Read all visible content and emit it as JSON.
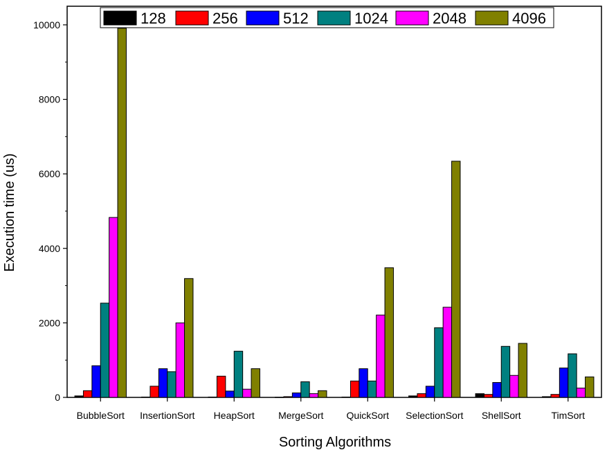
{
  "chart_data": {
    "type": "bar",
    "title": "",
    "xlabel": "Sorting Algorithms",
    "ylabel": "Execution time (us)",
    "ylim": [
      0,
      10500
    ],
    "yticks": [
      0,
      2000,
      4000,
      6000,
      8000,
      10000
    ],
    "ytick_labels": [
      "0",
      "2000",
      "4000",
      "6000",
      "8000",
      "10000"
    ],
    "categories": [
      "BubbleSort",
      "InsertionSort",
      "HeapSort",
      "MergeSort",
      "QuickSort",
      "SelectionSort",
      "ShellSort",
      "TimSort"
    ],
    "legend_position": "top-center",
    "series": [
      {
        "name": "128",
        "color": "#000000",
        "values": [
          40,
          10,
          10,
          5,
          10,
          40,
          100,
          20
        ]
      },
      {
        "name": "256",
        "color": "#ff0000",
        "values": [
          180,
          300,
          570,
          20,
          440,
          100,
          80,
          80
        ]
      },
      {
        "name": "512",
        "color": "#0000ff",
        "values": [
          850,
          770,
          170,
          120,
          770,
          300,
          400,
          790
        ]
      },
      {
        "name": "1024",
        "color": "#008080",
        "values": [
          2530,
          690,
          1240,
          420,
          440,
          1870,
          1370,
          1170
        ]
      },
      {
        "name": "2048",
        "color": "#ff00ff",
        "values": [
          4830,
          2000,
          220,
          100,
          2210,
          2420,
          590,
          250
        ]
      },
      {
        "name": "4096",
        "color": "#808000",
        "values": [
          9910,
          3190,
          770,
          180,
          3480,
          6340,
          1450,
          550
        ]
      }
    ]
  }
}
